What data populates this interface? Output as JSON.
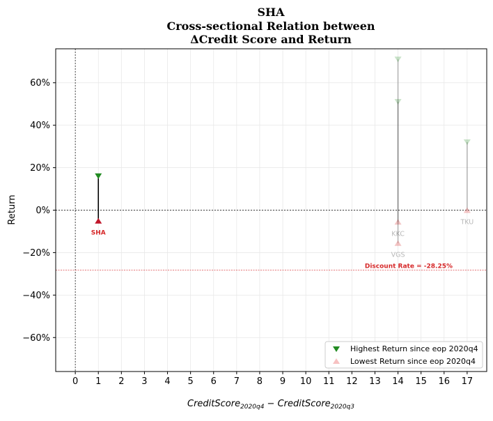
{
  "chart_data": {
    "type": "scatter",
    "title_lines": [
      "SHA",
      "Cross-sectional Relation between",
      "ΔCredit Score and Return"
    ],
    "xlabel": "CreditScore",
    "xlabel_sub1": "2020q4",
    "xlabel_mid": " − CreditScore",
    "xlabel_sub2": "2020q3",
    "ylabel": "Return",
    "xlim": [
      -0.85,
      17.85
    ],
    "ylim": [
      -0.76,
      0.76
    ],
    "x_ticks": [
      0,
      1,
      2,
      3,
      4,
      5,
      6,
      7,
      8,
      9,
      10,
      11,
      12,
      13,
      14,
      15,
      16,
      17
    ],
    "x_tick_labels": [
      "0",
      "1",
      "2",
      "3",
      "4",
      "5",
      "6",
      "7",
      "8",
      "9",
      "10",
      "11",
      "12",
      "13",
      "14",
      "15",
      "16",
      "17"
    ],
    "y_ticks": [
      -0.6,
      -0.4,
      -0.2,
      0,
      0.2,
      0.4,
      0.6
    ],
    "y_tick_labels": [
      "−60%",
      "−40%",
      "−20%",
      "0%",
      "20%",
      "40%",
      "60%"
    ],
    "grid": true,
    "legend_position": "lower-right",
    "legend": [
      {
        "label": "Highest Return since eop 2020q4",
        "marker": "triangle-down",
        "color": "#228B22"
      },
      {
        "label": "Lowest Return since eop 2020q4",
        "marker": "triangle-up",
        "color": "#F4A6A6"
      }
    ],
    "reference_lines": {
      "x": 0,
      "y": 0
    },
    "discount_rate": {
      "value": -0.2825,
      "label": "Discount Rate = -28.25%",
      "color": "#d62728"
    },
    "points": [
      {
        "ticker": "SHA",
        "x": 1,
        "high": 0.16,
        "low": -0.05,
        "highlight": true
      },
      {
        "ticker": "KKC",
        "x": 14,
        "high": 0.51,
        "low": -0.055,
        "highlight": false
      },
      {
        "ticker": "VGS",
        "x": 14,
        "high": 0.71,
        "low": -0.155,
        "highlight": false
      },
      {
        "ticker": "TKU",
        "x": 17,
        "high": 0.32,
        "low": 0.0,
        "highlight": false
      }
    ]
  }
}
